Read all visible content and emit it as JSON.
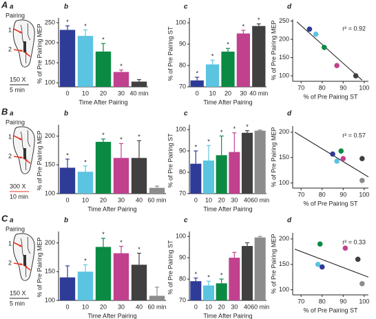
{
  "rows": [
    {
      "label": "A",
      "diagram": {
        "panel": "a",
        "title": "Pairing",
        "sites": [
          "1",
          "2"
        ],
        "stimulus": "150 X",
        "duration": "5 min",
        "stimulus_color": "#222222"
      }
    },
    {
      "label": "B",
      "diagram": {
        "panel": "a",
        "title": "Pairing",
        "sites": [
          "1",
          "2"
        ],
        "stimulus": "300 X",
        "duration": "10 min",
        "stimulus_color": "#e8321e"
      }
    },
    {
      "label": "C",
      "diagram": {
        "panel": "a",
        "title": "Pairing",
        "sites": [
          "1",
          "2"
        ],
        "stimulus": "150 X",
        "duration": "5 min",
        "stimulus_color": "#222222"
      }
    }
  ],
  "chart_data": [
    {
      "type": "bar",
      "panel": "b",
      "categories": [
        "0",
        "10",
        "20",
        "30",
        "40 min"
      ],
      "values": [
        232,
        217,
        178,
        127,
        103
      ],
      "errors": [
        10,
        15,
        20,
        5,
        5
      ],
      "annotations": [
        "*",
        "*",
        "*",
        "*",
        null
      ],
      "colors": [
        "#2e3b97",
        "#5bc4e0",
        "#0b8a43",
        "#c1418f",
        "#404040"
      ],
      "ylim": [
        90,
        255
      ],
      "yticks": [
        100,
        150,
        200,
        250
      ],
      "ylabel": "% of Pre Pairing MEP",
      "xlabel": "Time After Pairing"
    },
    {
      "type": "bar",
      "panel": "c",
      "categories": [
        "0",
        "10",
        "20",
        "30",
        "40 min"
      ],
      "values": [
        73,
        80.5,
        86.5,
        95,
        98.5
      ],
      "errors": [
        1.5,
        2,
        1.5,
        1.5,
        1
      ],
      "annotations": [
        "*",
        "*",
        "*",
        "*",
        "*"
      ],
      "colors": [
        "#2e3b97",
        "#5bc4e0",
        "#0b8a43",
        "#c1418f",
        "#404040"
      ],
      "ylim": [
        70,
        101
      ],
      "yticks": [
        70,
        80,
        90,
        100
      ],
      "ylabel": "% of Pre Pairing ST",
      "xlabel": "Time After Pairing"
    },
    {
      "type": "scatter",
      "panel": "d",
      "x": [
        74,
        77,
        81,
        87,
        96
      ],
      "values": [
        228,
        214,
        178,
        128,
        100
      ],
      "colors": [
        "#2e3b97",
        "#5bc4e0",
        "#0b8a43",
        "#c1418f",
        "#404040"
      ],
      "xlim": [
        66,
        102
      ],
      "xticks": [
        70,
        80,
        90,
        100
      ],
      "ylim": [
        85,
        255
      ],
      "yticks": [
        100,
        150,
        200,
        250
      ],
      "ylabel": "% of Pre Pairing MEP",
      "xlabel": "% of Pre Pairing ST",
      "fit": {
        "x": [
          68,
          99
        ],
        "y": [
          248,
          88
        ]
      },
      "annotation": "r² = 0.92"
    },
    {
      "type": "bar",
      "panel": "b",
      "categories": [
        "0",
        "10",
        "20",
        "30",
        "40",
        "60 min"
      ],
      "values": [
        145,
        138,
        190,
        162,
        162,
        110
      ],
      "errors": [
        15,
        10,
        5,
        25,
        30,
        3
      ],
      "annotations": [
        "*",
        "*",
        "*",
        "*",
        "*",
        null
      ],
      "colors": [
        "#2e3b97",
        "#5bc4e0",
        "#0b8a43",
        "#c1418f",
        "#404040",
        "#8c8c8c"
      ],
      "ylim": [
        100,
        215
      ],
      "yticks": [
        100,
        150,
        200
      ],
      "ylabel": "% of Pre Pairing MEP",
      "xlabel": "Time After Pairing"
    },
    {
      "type": "bar",
      "panel": "c",
      "categories": [
        "0",
        "10",
        "20",
        "30",
        "40",
        "60 min"
      ],
      "values": [
        84,
        85.5,
        88,
        89.5,
        98.5,
        99.5
      ],
      "errors": [
        6,
        7,
        9,
        9,
        1,
        0.3
      ],
      "annotations": [
        "*",
        "*",
        "*",
        "*",
        "*",
        null
      ],
      "colors": [
        "#2e3b97",
        "#5bc4e0",
        "#0b8a43",
        "#c1418f",
        "#404040",
        "#8c8c8c"
      ],
      "ylim": [
        70,
        101
      ],
      "yticks": [
        70,
        80,
        90,
        100
      ],
      "ylabel": "% of Pre Pairing ST",
      "xlabel": "Time After Pairing"
    },
    {
      "type": "scatter",
      "panel": "d",
      "x": [
        85,
        87,
        89,
        90,
        99,
        99
      ],
      "values": [
        157,
        143,
        163,
        148,
        148,
        105
      ],
      "colors": [
        "#2e3b97",
        "#5bc4e0",
        "#0b8a43",
        "#c1418f",
        "#404040",
        "#8c8c8c"
      ],
      "xlim": [
        66,
        102
      ],
      "xticks": [
        70,
        80,
        90,
        100
      ],
      "ylim": [
        90,
        212
      ],
      "yticks": [
        100,
        150,
        200
      ],
      "ylabel": "% of Pre Pairing MEP",
      "xlabel": "% of Pre Pairing ST",
      "fit": {
        "x": [
          67,
          102
        ],
        "y": [
          200,
          112
        ]
      },
      "annotation": "r² = 0.57"
    },
    {
      "type": "bar",
      "panel": "b",
      "categories": [
        "0",
        "10",
        "20",
        "30",
        "40",
        "60 min"
      ],
      "values": [
        140,
        150,
        193,
        182,
        162,
        108
      ],
      "errors": [
        20,
        12,
        15,
        12,
        20,
        15
      ],
      "annotations": [
        null,
        "*",
        "*",
        "*",
        "*",
        null
      ],
      "colors": [
        "#2e3b97",
        "#5bc4e0",
        "#0b8a43",
        "#c1418f",
        "#404040",
        "#8c8c8c"
      ],
      "ylim": [
        100,
        215
      ],
      "yticks": [
        100,
        150,
        200
      ],
      "ylabel": "% of Pre Pairing MEP",
      "xlabel": "Time After Pairing"
    },
    {
      "type": "bar",
      "panel": "c",
      "categories": [
        "0",
        "10",
        "20",
        "30",
        "40",
        "60 min"
      ],
      "values": [
        79,
        77,
        78,
        90,
        95.5,
        99.5
      ],
      "errors": [
        1.5,
        2,
        2,
        2.5,
        1.5,
        0.5
      ],
      "annotations": [
        "*",
        "*",
        "*",
        null,
        null,
        null
      ],
      "colors": [
        "#2e3b97",
        "#5bc4e0",
        "#0b8a43",
        "#c1418f",
        "#404040",
        "#8c8c8c"
      ],
      "ylim": [
        70,
        101
      ],
      "yticks": [
        70,
        80,
        90,
        100
      ],
      "ylabel": "% of Pre Pairing ST",
      "xlabel": "Time After Pairing"
    },
    {
      "type": "scatter",
      "panel": "d",
      "x": [
        79,
        78,
        80,
        91,
        97,
        99
      ],
      "values": [
        190,
        150,
        145,
        182,
        160,
        112
      ],
      "colors": [
        "#0b8a43",
        "#5bc4e0",
        "#2e3b97",
        "#c1418f",
        "#404040",
        "#8c8c8c"
      ],
      "xlim": [
        66,
        102
      ],
      "xticks": [
        70,
        80,
        90,
        100
      ],
      "ylim": [
        90,
        212
      ],
      "yticks": [
        100,
        150,
        200
      ],
      "ylabel": "% of Pre Pairing MEP",
      "xlabel": "% of Pre Pairing ST",
      "fit": {
        "x": [
          67,
          102
        ],
        "y": [
          180,
          125
        ]
      },
      "annotation": "r² = 0.33"
    }
  ]
}
